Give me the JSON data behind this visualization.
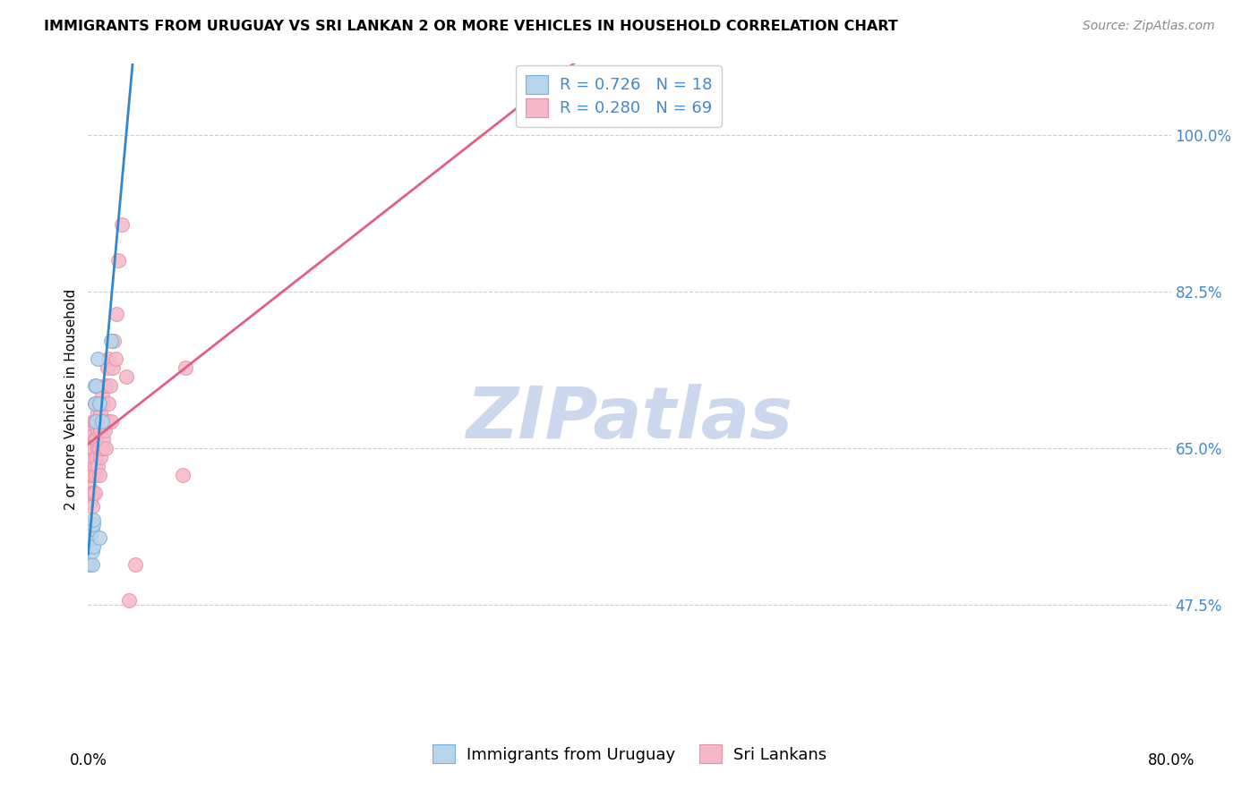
{
  "title": "IMMIGRANTS FROM URUGUAY VS SRI LANKAN 2 OR MORE VEHICLES IN HOUSEHOLD CORRELATION CHART",
  "source": "Source: ZipAtlas.com",
  "ylabel": "2 or more Vehicles in Household",
  "yticks": [
    47.5,
    65.0,
    82.5,
    100.0
  ],
  "xmin": 0.0,
  "xmax": 0.8,
  "ymin": 33.0,
  "ymax": 108.0,
  "uruguay_R": 0.726,
  "uruguay_N": 18,
  "srilanka_R": 0.28,
  "srilanka_N": 69,
  "uruguay_color": "#b8d4ea",
  "uruguay_edge": "#7ab0d8",
  "srilanka_color": "#f5b8c8",
  "srilanka_edge": "#e890a8",
  "uruguay_line_color": "#3388cc",
  "srilanka_line_color": "#e06080",
  "watermark": "ZIPatlas",
  "watermark_color": "#ccd8ee",
  "background_color": "#ffffff",
  "uruguay_x": [
    0.001,
    0.002,
    0.002,
    0.003,
    0.003,
    0.003,
    0.004,
    0.004,
    0.004,
    0.005,
    0.005,
    0.006,
    0.006,
    0.007,
    0.008,
    0.008,
    0.01,
    0.017
  ],
  "uruguay_y": [
    52.0,
    55.0,
    56.5,
    52.0,
    53.5,
    56.0,
    54.0,
    56.5,
    57.0,
    70.0,
    72.0,
    68.0,
    72.0,
    75.0,
    55.0,
    70.0,
    68.0,
    77.0
  ],
  "srilanka_x": [
    0.001,
    0.001,
    0.001,
    0.002,
    0.002,
    0.002,
    0.002,
    0.002,
    0.002,
    0.002,
    0.003,
    0.003,
    0.003,
    0.003,
    0.003,
    0.003,
    0.003,
    0.004,
    0.004,
    0.004,
    0.004,
    0.004,
    0.005,
    0.005,
    0.005,
    0.005,
    0.005,
    0.006,
    0.006,
    0.006,
    0.006,
    0.006,
    0.007,
    0.007,
    0.007,
    0.007,
    0.008,
    0.008,
    0.008,
    0.008,
    0.009,
    0.009,
    0.009,
    0.01,
    0.01,
    0.01,
    0.011,
    0.011,
    0.012,
    0.012,
    0.013,
    0.013,
    0.014,
    0.014,
    0.015,
    0.015,
    0.016,
    0.017,
    0.018,
    0.019,
    0.02,
    0.021,
    0.022,
    0.025,
    0.028,
    0.03,
    0.035,
    0.07,
    0.072
  ],
  "srilanka_y": [
    60.0,
    62.0,
    64.0,
    59.0,
    60.5,
    62.5,
    63.5,
    64.0,
    65.0,
    66.0,
    58.5,
    60.0,
    62.0,
    63.0,
    64.0,
    65.0,
    67.0,
    60.0,
    62.0,
    65.0,
    66.5,
    68.0,
    60.0,
    63.0,
    66.0,
    68.0,
    70.0,
    62.0,
    64.0,
    66.0,
    67.5,
    70.0,
    63.0,
    65.0,
    67.0,
    69.0,
    62.0,
    65.0,
    67.5,
    70.0,
    64.0,
    67.0,
    69.0,
    65.0,
    68.0,
    71.0,
    66.0,
    70.0,
    67.0,
    72.0,
    65.0,
    72.0,
    68.0,
    74.0,
    70.0,
    75.0,
    72.0,
    68.0,
    74.0,
    77.0,
    75.0,
    80.0,
    86.0,
    90.0,
    73.0,
    48.0,
    52.0,
    62.0,
    74.0
  ]
}
